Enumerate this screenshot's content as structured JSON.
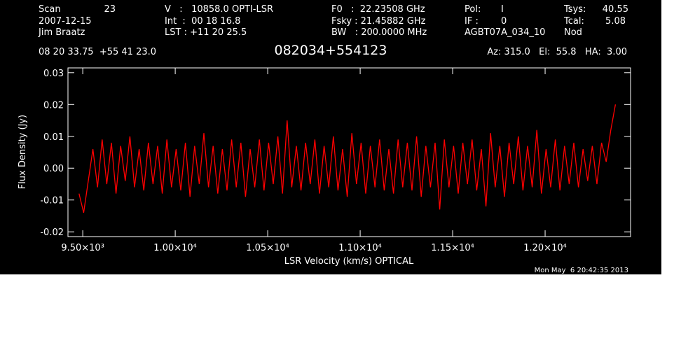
{
  "header": {
    "scan_label": "Scan",
    "scan": "23",
    "date": "2007-12-15",
    "observer": "Jim Braatz",
    "velocity": "V   :   10858.0 OPTI-LSR",
    "int": "Int  :  00 18 16.8",
    "lst": "LST : +11 20 25.5",
    "f0": "F0   :  22.23508 GHz",
    "fsky": "Fsky : 21.45882 GHz",
    "bw": "BW   : 200.0000 MHz",
    "pol_label": "Pol:",
    "pol": "I",
    "if_label": "IF :",
    "if": "0",
    "project": "AGBT07A_034_10",
    "tsys_label": "Tsys:",
    "tsys": "40.55",
    "tcal_label": "Tcal:",
    "tcal": "5.08",
    "mode": "Nod",
    "coords": "08 20 33.75  +55 41 23.0",
    "pointing": "Az: 315.0   El:  55.8   HA:  3.00"
  },
  "chart_data": {
    "type": "line",
    "title": "082034+554123",
    "x_label": "LSR Velocity (km/s) OPTICAL",
    "y_label": "Flux Density (Jy)",
    "footer": "Mon May  6 20:42:35 2013",
    "color": "#ff0000",
    "xlim": [
      9420,
      12462
    ],
    "ylim": [
      -0.0215,
      0.0315
    ],
    "xticks": [
      {
        "value": 9500,
        "label": "9.50×10³"
      },
      {
        "value": 10000,
        "label": "1.00×10⁴"
      },
      {
        "value": 10500,
        "label": "1.05×10⁴"
      },
      {
        "value": 11000,
        "label": "1.10×10⁴"
      },
      {
        "value": 11500,
        "label": "1.15×10⁴"
      },
      {
        "value": 12000,
        "label": "1.20×10⁴"
      }
    ],
    "yticks": [
      -0.02,
      -0.01,
      {
        "value": 0,
        "label": "0.00"
      },
      0.01,
      0.02,
      0.03
    ],
    "x": [
      9480,
      9505,
      9530,
      9555,
      9580,
      9605,
      9630,
      9655,
      9680,
      9705,
      9730,
      9755,
      9780,
      9805,
      9830,
      9855,
      9880,
      9905,
      9930,
      9955,
      9980,
      10005,
      10030,
      10055,
      10080,
      10105,
      10130,
      10155,
      10180,
      10205,
      10230,
      10255,
      10280,
      10305,
      10330,
      10355,
      10380,
      10405,
      10430,
      10455,
      10480,
      10505,
      10530,
      10555,
      10580,
      10605,
      10630,
      10655,
      10680,
      10705,
      10730,
      10755,
      10780,
      10805,
      10830,
      10855,
      10880,
      10905,
      10930,
      10955,
      10980,
      11005,
      11030,
      11055,
      11080,
      11105,
      11130,
      11155,
      11180,
      11205,
      11230,
      11255,
      11280,
      11305,
      11330,
      11355,
      11380,
      11405,
      11430,
      11455,
      11480,
      11505,
      11530,
      11555,
      11580,
      11605,
      11630,
      11655,
      11680,
      11705,
      11730,
      11755,
      11780,
      11805,
      11830,
      11855,
      11880,
      11905,
      11930,
      11955,
      11980,
      12005,
      12030,
      12055,
      12080,
      12105,
      12130,
      12155,
      12180,
      12205,
      12230,
      12255,
      12280,
      12305,
      12330,
      12355,
      12380
    ],
    "values": [
      -0.008,
      -0.014,
      -0.004,
      0.006,
      -0.006,
      0.009,
      -0.005,
      0.008,
      -0.008,
      0.007,
      -0.004,
      0.01,
      -0.006,
      0.006,
      -0.007,
      0.008,
      -0.005,
      0.007,
      -0.008,
      0.009,
      -0.006,
      0.006,
      -0.007,
      0.008,
      -0.009,
      0.007,
      -0.005,
      0.011,
      -0.006,
      0.007,
      -0.008,
      0.006,
      -0.007,
      0.009,
      -0.006,
      0.008,
      -0.009,
      0.006,
      -0.006,
      0.009,
      -0.007,
      0.008,
      -0.005,
      0.01,
      -0.008,
      0.015,
      -0.006,
      0.007,
      -0.007,
      0.008,
      -0.005,
      0.009,
      -0.008,
      0.007,
      -0.006,
      0.01,
      -0.007,
      0.006,
      -0.009,
      0.011,
      -0.005,
      0.008,
      -0.008,
      0.007,
      -0.006,
      0.009,
      -0.007,
      0.006,
      -0.008,
      0.009,
      -0.006,
      0.008,
      -0.007,
      0.01,
      -0.009,
      0.007,
      -0.006,
      0.008,
      -0.013,
      0.009,
      -0.006,
      0.007,
      -0.008,
      0.008,
      -0.005,
      0.009,
      -0.007,
      0.006,
      -0.012,
      0.011,
      -0.006,
      0.007,
      -0.009,
      0.008,
      -0.005,
      0.01,
      -0.007,
      0.007,
      -0.006,
      0.012,
      -0.008,
      0.006,
      -0.006,
      0.009,
      -0.007,
      0.007,
      -0.005,
      0.008,
      -0.006,
      0.006,
      -0.004,
      0.007,
      -0.005,
      0.008,
      0.002,
      0.012,
      0.02
    ]
  }
}
